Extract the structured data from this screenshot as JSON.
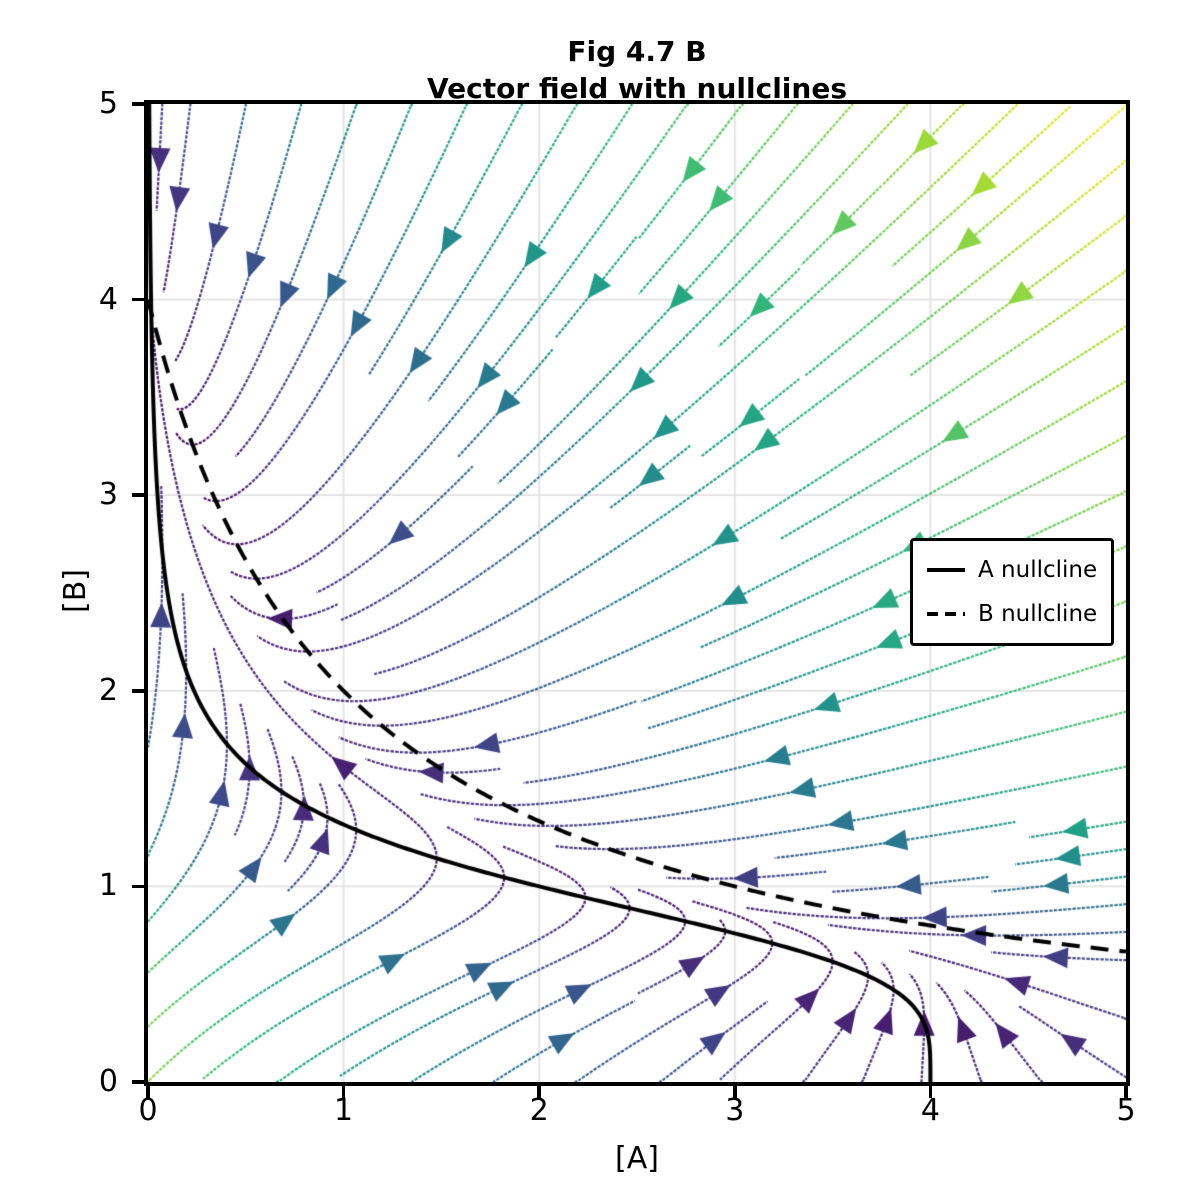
{
  "figure": {
    "title_line1": "Fig 4.7 B",
    "title_line2": "Vector field with nullclines"
  },
  "chart_data": {
    "type": "streamplot",
    "title": "Fig 4.7 B\nVector field with nullclines",
    "xlabel": "[A]",
    "ylabel": "[B]",
    "xlim": [
      0,
      5
    ],
    "ylim": [
      0,
      5
    ],
    "xticks": [
      "0",
      "1",
      "2",
      "3",
      "4",
      "5"
    ],
    "yticks": [
      "0",
      "1",
      "2",
      "3",
      "4",
      "5"
    ],
    "grid": true,
    "grid_color": "#e1e1e1",
    "axis_color": "#000000",
    "field": {
      "dA_dt": "4/(1+B^4) - A",
      "dB_dt": "4/(1+A) - B",
      "alpha": 4,
      "exp_B": 4,
      "exp_A": 1,
      "color_by": "speed",
      "cmap": "viridis",
      "speed_range": [
        0,
        6.61
      ]
    },
    "nullclines": [
      {
        "label": "A nullcline",
        "style": "solid",
        "color": "#000000",
        "equation": "A = 4/(1+B^4)",
        "points_B_A": [
          [
            0,
            4
          ],
          [
            0.5,
            3.76
          ],
          [
            1,
            2
          ],
          [
            1.5,
            0.66
          ],
          [
            2,
            0.235
          ],
          [
            2.5,
            0.099
          ],
          [
            3,
            0.049
          ],
          [
            3.5,
            0.026
          ],
          [
            4,
            0.016
          ],
          [
            4.5,
            0.01
          ],
          [
            5,
            0.006
          ]
        ]
      },
      {
        "label": "B nullcline",
        "style": "dashed",
        "color": "#000000",
        "equation": "B = 4/(1+A)",
        "points_A_B": [
          [
            0,
            4
          ],
          [
            0.5,
            2.667
          ],
          [
            1,
            2
          ],
          [
            1.5,
            1.6
          ],
          [
            2,
            1.333
          ],
          [
            2.5,
            1.143
          ],
          [
            3,
            1
          ],
          [
            3.5,
            0.889
          ],
          [
            4,
            0.8
          ],
          [
            4.5,
            0.727
          ],
          [
            5,
            0.667
          ]
        ]
      }
    ],
    "legend": {
      "items": [
        {
          "label": "A nullcline",
          "line": "solid"
        },
        {
          "label": "B nullcline",
          "line": "dashed"
        }
      ]
    },
    "stream": {
      "mask_n": 36,
      "step": 0.012,
      "min_length": 0.5,
      "max_steps": 2600,
      "linewidth": 2.2,
      "dash": [
        2.6,
        1.3
      ],
      "arrow_length": 25,
      "arrow_halfwidth": 10.5,
      "nullcline_linewidth": 4,
      "nullcline_dash": [
        18,
        11
      ]
    },
    "viridis_stops": [
      "#440154",
      "#482878",
      "#3e4989",
      "#31688e",
      "#26828e",
      "#1f9e89",
      "#35b779",
      "#6ece58",
      "#b5de2b",
      "#fde725"
    ]
  }
}
